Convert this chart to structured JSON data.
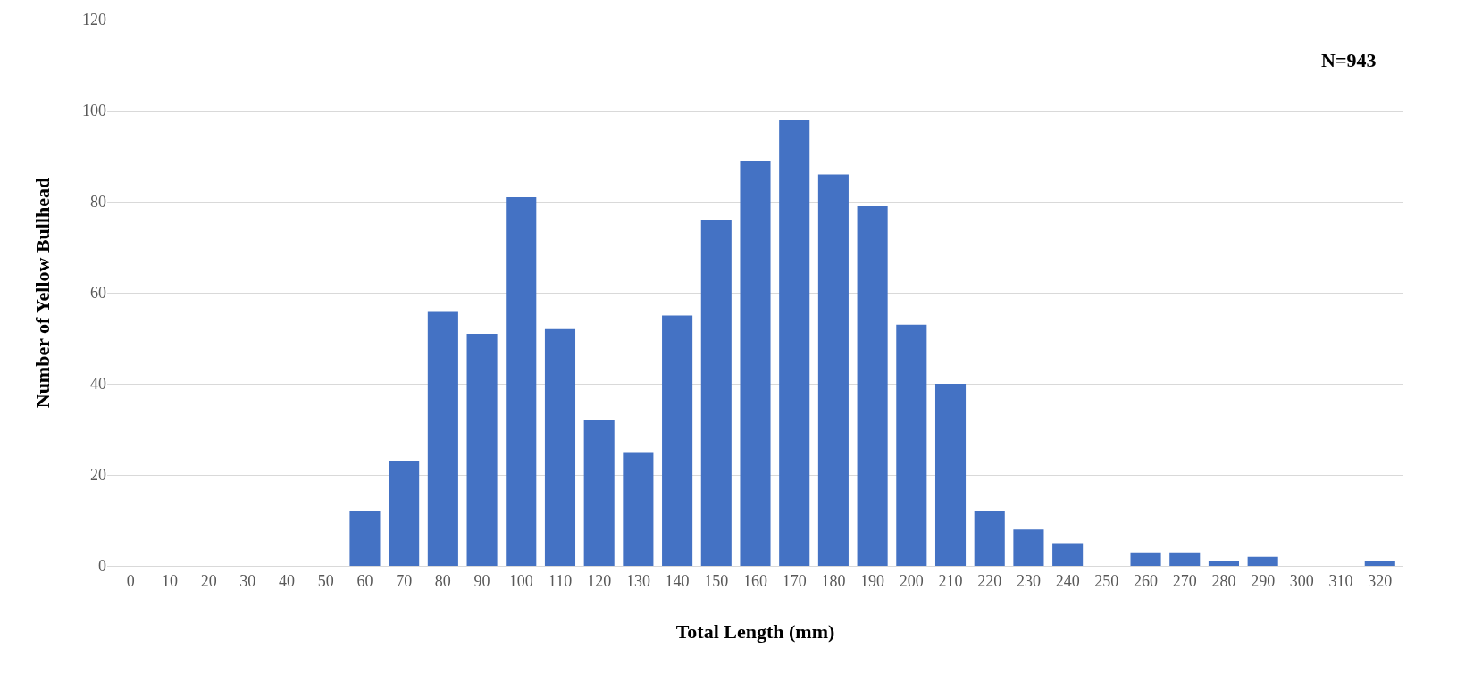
{
  "chart_data": {
    "type": "bar",
    "xlabel": "Total Length (mm)",
    "ylabel": "Number of Yellow Bullhead",
    "categories": [
      "0",
      "10",
      "20",
      "30",
      "40",
      "50",
      "60",
      "70",
      "80",
      "90",
      "100",
      "110",
      "120",
      "130",
      "140",
      "150",
      "160",
      "170",
      "180",
      "190",
      "200",
      "210",
      "220",
      "230",
      "240",
      "250",
      "260",
      "270",
      "280",
      "290",
      "300",
      "310",
      "320"
    ],
    "values": [
      0,
      0,
      0,
      0,
      0,
      0,
      12,
      23,
      56,
      51,
      81,
      52,
      32,
      25,
      55,
      76,
      89,
      98,
      86,
      79,
      53,
      40,
      12,
      8,
      5,
      0,
      3,
      3,
      1,
      2,
      0,
      0,
      1
    ],
    "color": "#4472c4",
    "ylim": [
      0,
      120
    ],
    "yticks": [
      0,
      20,
      40,
      60,
      80,
      100,
      120
    ],
    "grid": "y",
    "annotations": [
      "N=943"
    ]
  }
}
